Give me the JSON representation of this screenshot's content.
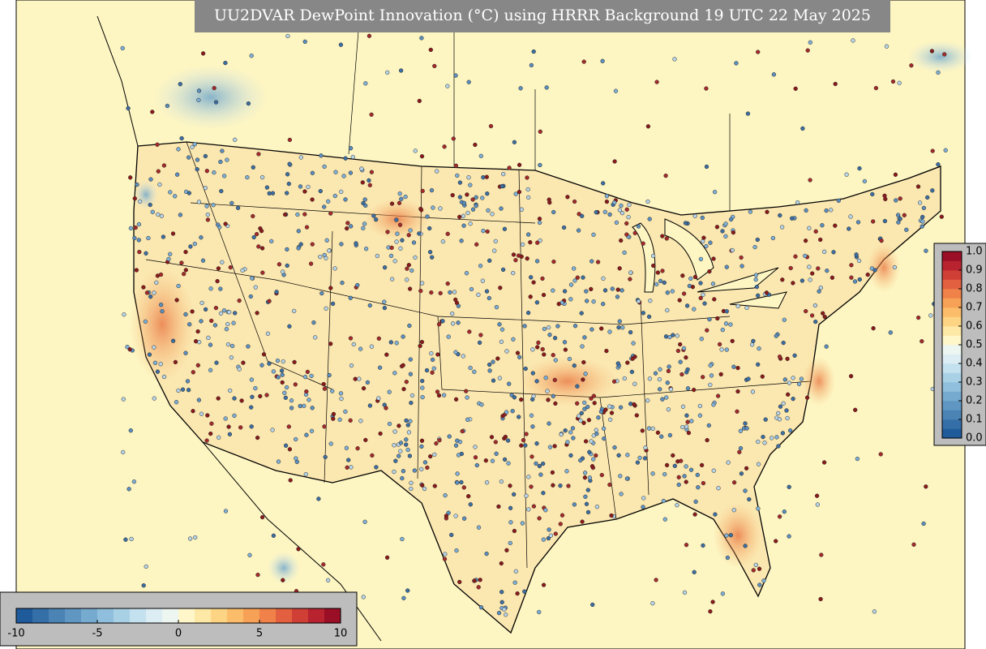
{
  "title": "UU2DVAR DewPoint Innovation (°C) using HRRR Background 19 UTC 22 May 2025",
  "colorbars": [
    {
      "orientation": "horizontal",
      "lim": [
        -10,
        10
      ],
      "ticks": [
        -10,
        -5,
        0,
        5,
        10
      ],
      "colors": [
        "#1f5a9a",
        "#356fa8",
        "#4b83b5",
        "#5f97c2",
        "#77aacf",
        "#8fbfdc",
        "#a9d1e6",
        "#c3e1ee",
        "#dcedf3",
        "#eef6f1",
        "#fff6c9",
        "#fee8a5",
        "#fdd484",
        "#fbbd6a",
        "#f7a156",
        "#ef8149",
        "#e2603f",
        "#d03f36",
        "#b8232f",
        "#9a0e26"
      ]
    },
    {
      "orientation": "vertical",
      "lim": [
        0,
        1
      ],
      "ticks": [
        {
          "value": 0,
          "label": "0.0"
        },
        0.1,
        0.2,
        0.3,
        0.4,
        0.5,
        0.6,
        0.7,
        0.8,
        0.9,
        {
          "value": 1,
          "label": "1.0"
        }
      ],
      "colors": [
        "#1f5a9a",
        "#356fa8",
        "#4b83b5",
        "#5f97c2",
        "#77aacf",
        "#8fbfdc",
        "#a9d1e6",
        "#c3e1ee",
        "#dcedf3",
        "#eef6f1",
        "#fff6c9",
        "#fee8a5",
        "#fdd484",
        "#fbbd6a",
        "#f7a156",
        "#ef8149",
        "#e2603f",
        "#d03f36",
        "#b8232f",
        "#9a0e26"
      ]
    }
  ]
}
